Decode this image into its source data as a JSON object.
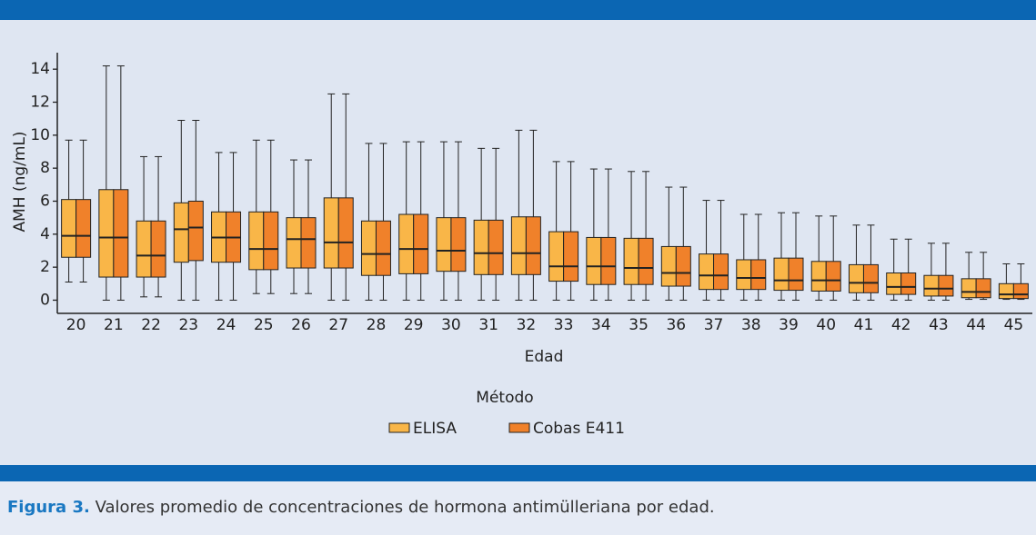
{
  "chart_data": {
    "type": "boxplot",
    "y_label": "AMH (ng/mL)",
    "x_label": "Edad",
    "legend_title": "Método",
    "categories": [
      "20",
      "21",
      "22",
      "23",
      "24",
      "25",
      "26",
      "27",
      "28",
      "29",
      "30",
      "31",
      "32",
      "33",
      "34",
      "35",
      "36",
      "37",
      "38",
      "39",
      "40",
      "41",
      "42",
      "43",
      "44",
      "45"
    ],
    "ylim": [
      -0.8,
      15
    ],
    "yticks": [
      0,
      2,
      4,
      6,
      8,
      10,
      12,
      14
    ],
    "series": [
      {
        "name": "ELISA",
        "color": "#f9b648",
        "whisker_low": [
          1.1,
          0,
          0.2,
          0,
          0,
          0.4,
          0.4,
          0,
          0,
          0,
          0,
          0,
          0,
          0,
          0,
          0,
          0,
          0,
          0,
          0,
          0,
          0,
          0,
          0,
          0.05,
          0.05
        ],
        "q1": [
          2.6,
          1.4,
          1.4,
          2.3,
          2.3,
          1.85,
          1.95,
          1.95,
          1.5,
          1.6,
          1.75,
          1.55,
          1.55,
          1.15,
          0.95,
          0.95,
          0.85,
          0.65,
          0.65,
          0.6,
          0.55,
          0.45,
          0.35,
          0.25,
          0.15,
          0.1
        ],
        "median": [
          3.9,
          3.8,
          2.7,
          4.3,
          3.8,
          3.1,
          3.7,
          3.5,
          2.8,
          3.1,
          3.0,
          2.85,
          2.85,
          2.05,
          2.05,
          1.95,
          1.65,
          1.5,
          1.35,
          1.2,
          1.2,
          1.05,
          0.8,
          0.7,
          0.5,
          0.35
        ],
        "q3": [
          6.1,
          6.7,
          4.8,
          5.9,
          5.35,
          5.35,
          5.0,
          6.2,
          4.8,
          5.2,
          5.0,
          4.85,
          5.05,
          4.15,
          3.8,
          3.75,
          3.25,
          2.8,
          2.45,
          2.55,
          2.35,
          2.15,
          1.65,
          1.5,
          1.3,
          1.0
        ],
        "whisker_high": [
          9.7,
          14.2,
          8.7,
          10.9,
          8.95,
          9.7,
          8.5,
          12.5,
          9.5,
          9.6,
          9.6,
          9.2,
          10.3,
          8.4,
          7.95,
          7.8,
          6.85,
          6.05,
          5.2,
          5.3,
          5.1,
          4.55,
          3.7,
          3.45,
          2.9,
          2.2
        ]
      },
      {
        "name": "Cobas E411",
        "color": "#f0812a",
        "whisker_low": [
          1.1,
          0,
          0.2,
          0,
          0,
          0.4,
          0.4,
          0,
          0,
          0,
          0,
          0,
          0,
          0,
          0,
          0,
          0,
          0,
          0,
          0,
          0,
          0,
          0,
          0,
          0.05,
          0.05
        ],
        "q1": [
          2.6,
          1.4,
          1.4,
          2.4,
          2.3,
          1.85,
          1.95,
          1.95,
          1.5,
          1.6,
          1.75,
          1.55,
          1.55,
          1.15,
          0.95,
          0.95,
          0.85,
          0.65,
          0.65,
          0.6,
          0.55,
          0.45,
          0.35,
          0.25,
          0.15,
          0.1
        ],
        "median": [
          3.9,
          3.8,
          2.7,
          4.4,
          3.8,
          3.1,
          3.7,
          3.5,
          2.8,
          3.1,
          3.0,
          2.85,
          2.85,
          2.05,
          2.05,
          1.95,
          1.65,
          1.5,
          1.35,
          1.2,
          1.2,
          1.05,
          0.8,
          0.7,
          0.5,
          0.35
        ],
        "q3": [
          6.1,
          6.7,
          4.8,
          6.0,
          5.35,
          5.35,
          5.0,
          6.2,
          4.8,
          5.2,
          5.0,
          4.85,
          5.05,
          4.15,
          3.8,
          3.75,
          3.25,
          2.8,
          2.45,
          2.55,
          2.35,
          2.15,
          1.65,
          1.5,
          1.3,
          1.0
        ],
        "whisker_high": [
          9.7,
          14.2,
          8.7,
          10.9,
          8.95,
          9.7,
          8.5,
          12.5,
          9.5,
          9.6,
          9.6,
          9.2,
          10.3,
          8.4,
          7.95,
          7.8,
          6.85,
          6.05,
          5.2,
          5.3,
          5.1,
          4.55,
          3.7,
          3.45,
          2.9,
          2.2
        ]
      }
    ]
  },
  "caption": {
    "label": "Figura 3.",
    "text": "Valores promedio de concentraciones de hormona antimülleriana por edad."
  }
}
